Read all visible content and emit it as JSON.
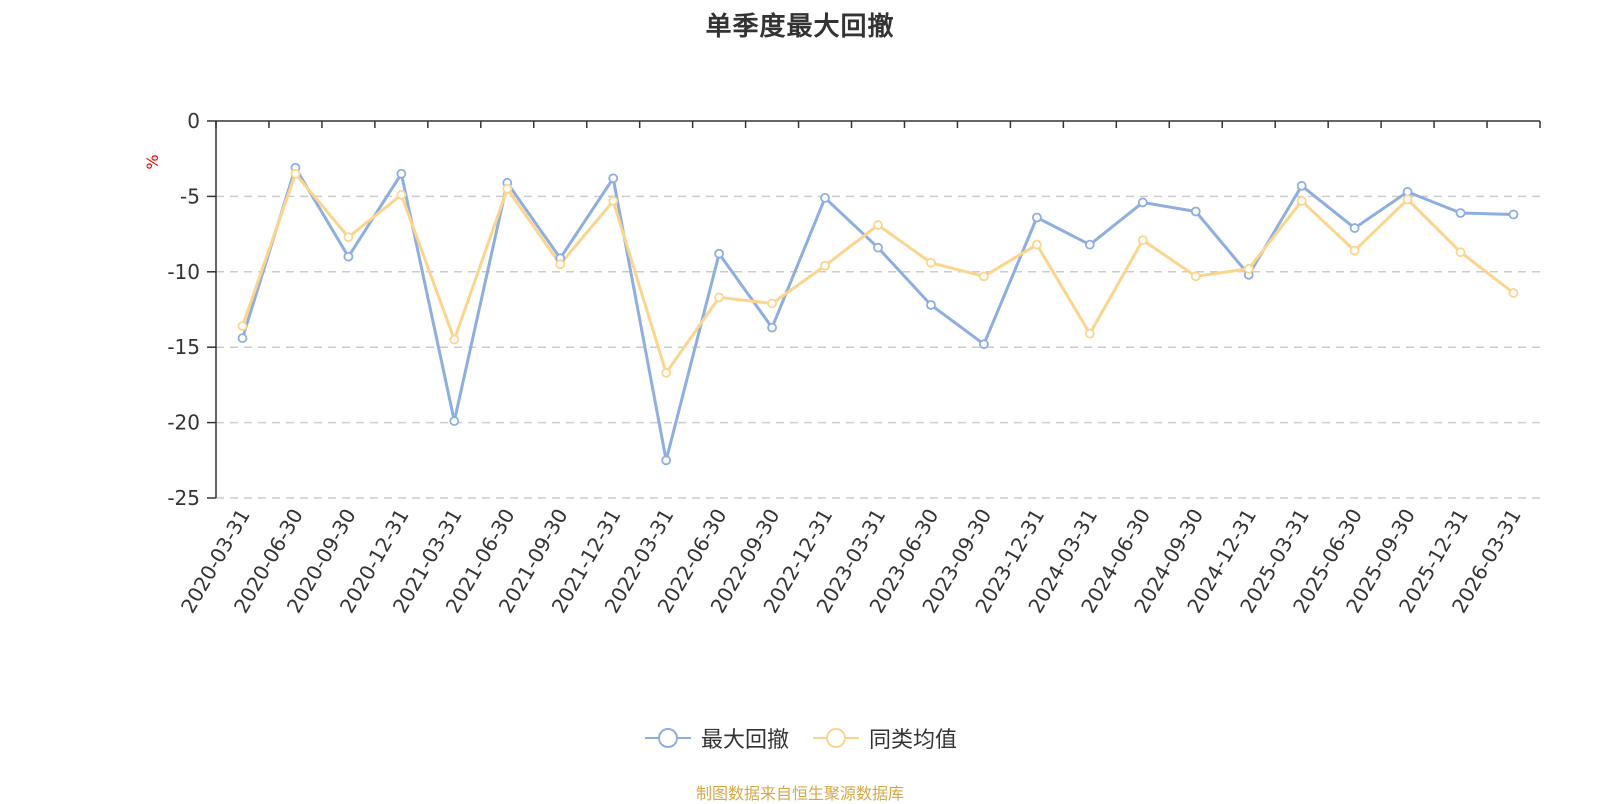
{
  "title": "单季度最大回撤",
  "source": "制图数据来自恒生聚源数据库",
  "colors": {
    "series1": "#8eaee0",
    "series2": "#fbd58e",
    "axis": "#333333",
    "grid": "#cccccc",
    "unit": "#ff0000"
  },
  "legend": {
    "items": [
      {
        "label": "最大回撤",
        "marker": "circle-line-icon"
      },
      {
        "label": "同类均值",
        "marker": "circle-line-icon"
      }
    ]
  },
  "chart_data": {
    "type": "line",
    "title": "单季度最大回撤",
    "ylabel": "%",
    "ylim": [
      -25,
      0
    ],
    "yticks": [
      0,
      -5,
      -10,
      -15,
      -20,
      -25
    ],
    "grid": true,
    "legend_position": "bottom-center",
    "categories": [
      "2020-03-31",
      "2020-06-30",
      "2020-09-30",
      "2020-12-31",
      "2021-03-31",
      "2021-06-30",
      "2021-09-30",
      "2021-12-31",
      "2022-03-31",
      "2022-06-30",
      "2022-09-30",
      "2022-12-31",
      "2023-03-31",
      "2023-06-30",
      "2023-09-30",
      "2023-12-31",
      "2024-03-31",
      "2024-06-30",
      "2024-09-30",
      "2024-12-31",
      "2025-03-31",
      "2025-06-30",
      "2025-09-30",
      "2025-12-31",
      "2026-03-31"
    ],
    "series": [
      {
        "name": "最大回撤",
        "values": [
          -14.4,
          -3.1,
          -9.0,
          -3.5,
          -19.9,
          -4.1,
          -9.1,
          -3.8,
          -22.5,
          -8.8,
          -13.7,
          -5.1,
          -8.4,
          -12.2,
          -14.8,
          -6.4,
          -8.2,
          -5.4,
          -6.0,
          -10.2,
          -4.3,
          -7.1,
          -4.7,
          -6.1,
          -6.2
        ]
      },
      {
        "name": "同类均值",
        "values": [
          -13.6,
          -3.5,
          -7.7,
          -4.9,
          -14.5,
          -4.5,
          -9.5,
          -5.3,
          -16.7,
          -11.7,
          -12.1,
          -9.6,
          -6.9,
          -9.4,
          -10.3,
          -8.2,
          -14.1,
          -7.9,
          -10.3,
          -9.8,
          -5.3,
          -8.6,
          -5.2,
          -8.7,
          -11.4
        ]
      }
    ]
  }
}
